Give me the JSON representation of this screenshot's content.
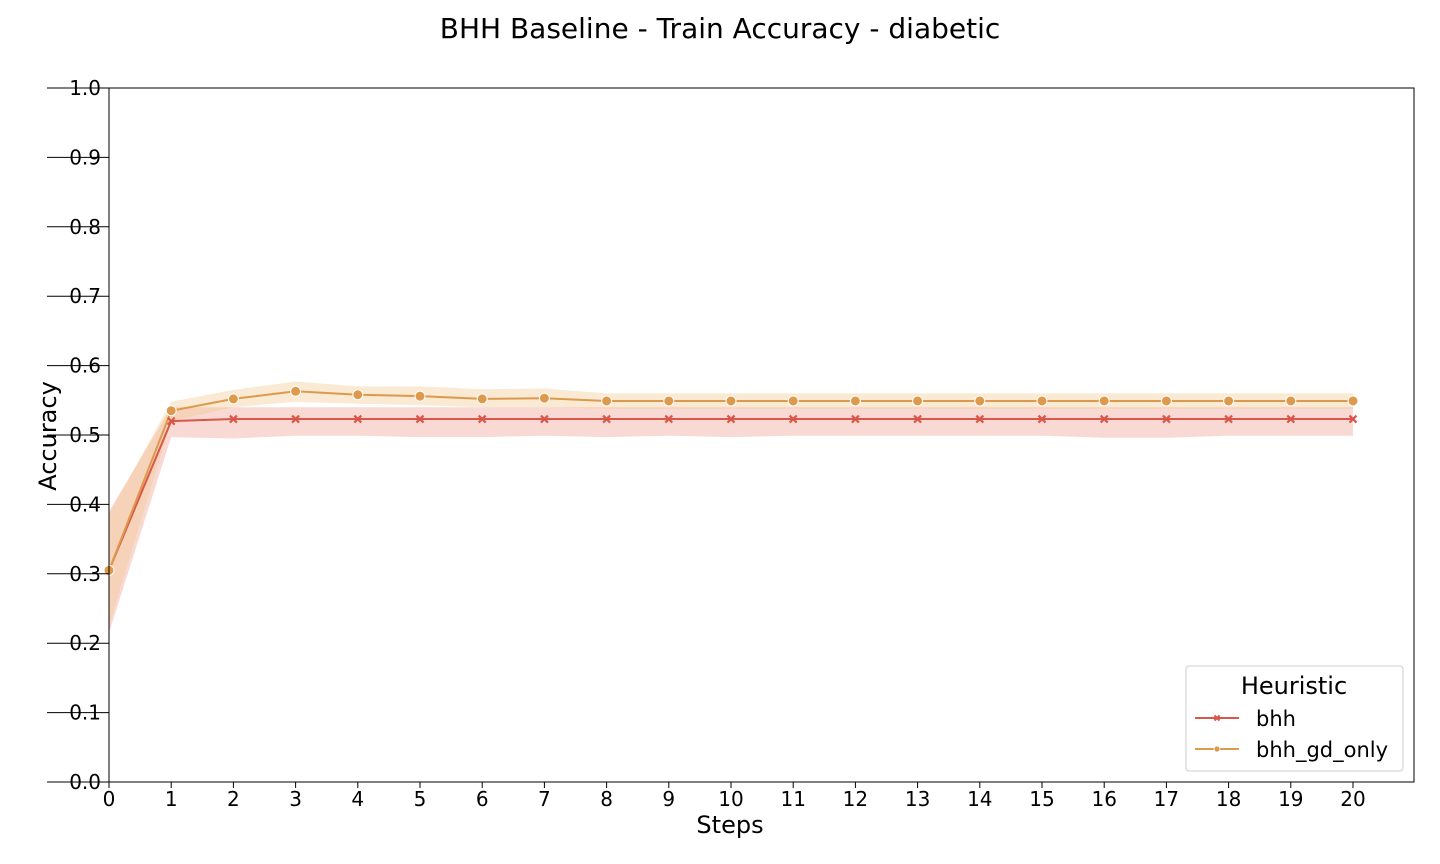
{
  "chart_data": {
    "type": "line",
    "title": "BHH Baseline - Train Accuracy - diabetic",
    "xlabel": "Steps",
    "ylabel": "Accuracy",
    "xlim": [
      0,
      21
    ],
    "ylim": [
      0.0,
      1.0
    ],
    "x_ticks": [
      0,
      1,
      2,
      3,
      4,
      5,
      6,
      7,
      8,
      9,
      10,
      11,
      12,
      13,
      14,
      15,
      16,
      17,
      18,
      19,
      20
    ],
    "y_ticks": [
      0.0,
      0.1,
      0.2,
      0.3,
      0.4,
      0.5,
      0.6,
      0.7,
      0.8,
      0.9,
      1.0
    ],
    "y_tick_labels": [
      "0.0",
      "0.1",
      "0.2",
      "0.3",
      "0.4",
      "0.5",
      "0.6",
      "0.7",
      "0.8",
      "0.9",
      "1.0"
    ],
    "grid": false,
    "legend": {
      "title": "Heuristic",
      "placement": "bottom-right"
    },
    "x": [
      0,
      1,
      2,
      3,
      4,
      5,
      6,
      7,
      8,
      9,
      10,
      11,
      12,
      13,
      14,
      15,
      16,
      17,
      18,
      19,
      20
    ],
    "series": [
      {
        "name": "bhh",
        "color": "#d9574a",
        "band_color": "#f0a090",
        "marker": "x",
        "values": [
          0.305,
          0.52,
          0.523,
          0.523,
          0.523,
          0.523,
          0.523,
          0.523,
          0.523,
          0.523,
          0.523,
          0.523,
          0.523,
          0.523,
          0.523,
          0.523,
          0.523,
          0.523,
          0.523,
          0.523,
          0.523
        ],
        "lower": [
          0.215,
          0.497,
          0.495,
          0.499,
          0.499,
          0.497,
          0.497,
          0.499,
          0.497,
          0.499,
          0.497,
          0.499,
          0.499,
          0.499,
          0.499,
          0.499,
          0.496,
          0.496,
          0.499,
          0.499,
          0.499
        ],
        "upper": [
          0.39,
          0.54,
          0.54,
          0.54,
          0.54,
          0.54,
          0.54,
          0.54,
          0.54,
          0.54,
          0.54,
          0.54,
          0.54,
          0.54,
          0.54,
          0.54,
          0.54,
          0.54,
          0.54,
          0.54,
          0.54
        ]
      },
      {
        "name": "bhh_gd_only",
        "color": "#dd9a4d",
        "band_color": "#f3c990",
        "marker": "o",
        "values": [
          0.305,
          0.535,
          0.552,
          0.563,
          0.558,
          0.556,
          0.552,
          0.553,
          0.549,
          0.549,
          0.549,
          0.549,
          0.549,
          0.549,
          0.549,
          0.549,
          0.549,
          0.549,
          0.549,
          0.549,
          0.549
        ],
        "lower": [
          0.225,
          0.52,
          0.54,
          0.548,
          0.545,
          0.543,
          0.54,
          0.54,
          0.538,
          0.538,
          0.538,
          0.538,
          0.538,
          0.538,
          0.538,
          0.538,
          0.538,
          0.538,
          0.538,
          0.538,
          0.538
        ],
        "upper": [
          0.385,
          0.548,
          0.565,
          0.577,
          0.57,
          0.57,
          0.566,
          0.567,
          0.56,
          0.56,
          0.56,
          0.56,
          0.56,
          0.56,
          0.56,
          0.56,
          0.56,
          0.56,
          0.56,
          0.56,
          0.56
        ]
      }
    ]
  }
}
